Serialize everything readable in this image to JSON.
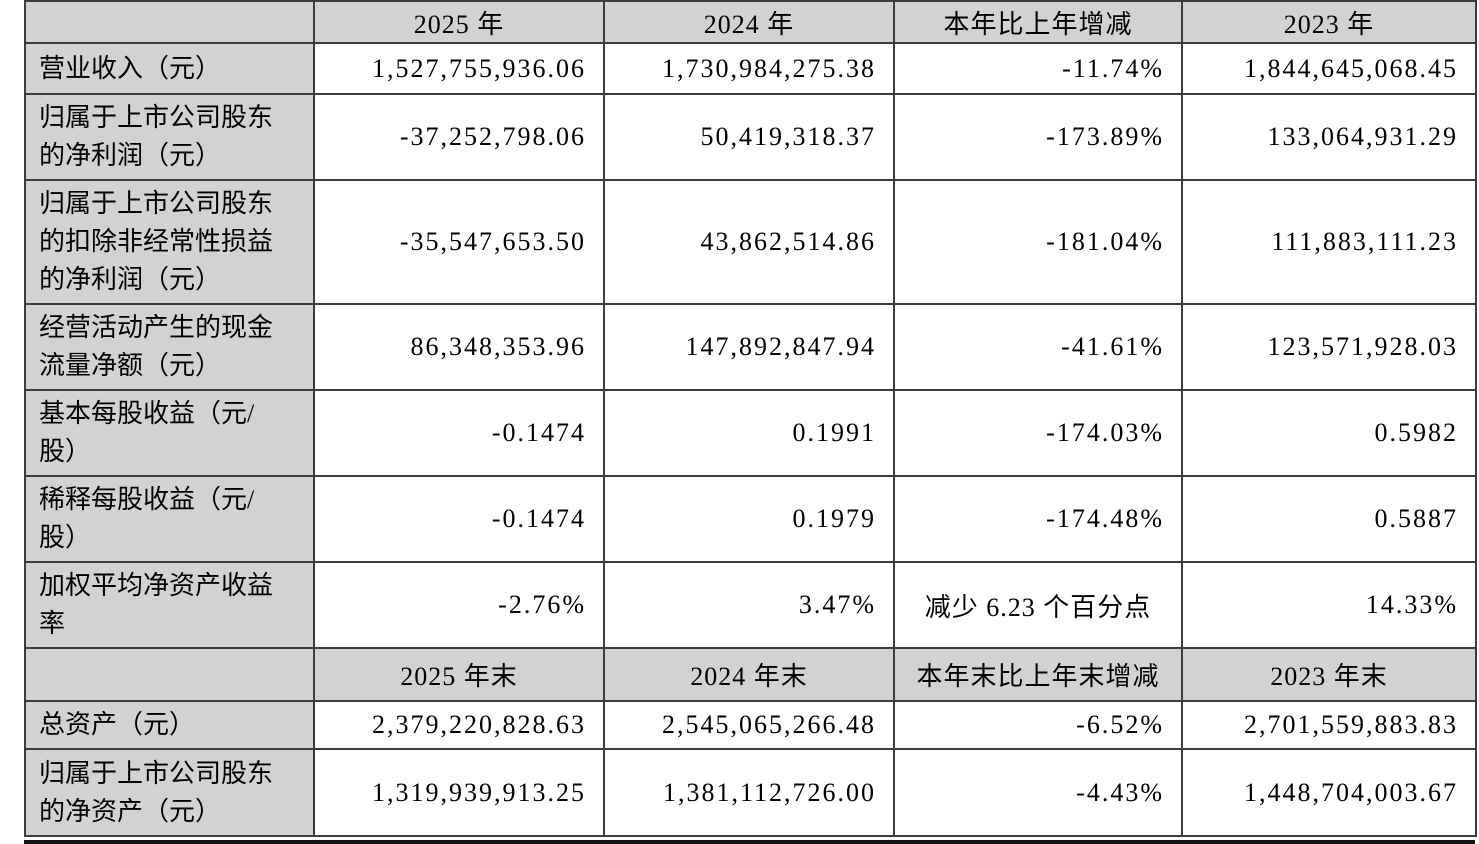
{
  "table": {
    "sections": [
      {
        "header": [
          "",
          "2025 年",
          "2024 年",
          "本年比上年增减",
          "2023 年"
        ],
        "rows": [
          {
            "label": "营业收入（元）",
            "values": [
              "1,527,755,936.06",
              "1,730,984,275.38",
              "-11.74%",
              "1,844,645,068.45"
            ]
          },
          {
            "label": "归属于上市公司股东的净利润（元）",
            "values": [
              "-37,252,798.06",
              "50,419,318.37",
              "-173.89%",
              "133,064,931.29"
            ]
          },
          {
            "label": "归属于上市公司股东的扣除非经常性损益的净利润（元）",
            "values": [
              "-35,547,653.50",
              "43,862,514.86",
              "-181.04%",
              "111,883,111.23"
            ]
          },
          {
            "label": "经营活动产生的现金流量净额（元）",
            "values": [
              "86,348,353.96",
              "147,892,847.94",
              "-41.61%",
              "123,571,928.03"
            ]
          },
          {
            "label": "基本每股收益（元/股）",
            "values": [
              "-0.1474",
              "0.1991",
              "-174.03%",
              "0.5982"
            ]
          },
          {
            "label": "稀释每股收益（元/股）",
            "values": [
              "-0.1474",
              "0.1979",
              "-174.48%",
              "0.5887"
            ]
          },
          {
            "label": "加权平均净资产收益率",
            "values": [
              "-2.76%",
              "3.47%",
              "减少 6.23 个百分点",
              "14.33%"
            ],
            "center": [
              2
            ]
          }
        ]
      },
      {
        "header": [
          "",
          "2025 年末",
          "2024 年末",
          "本年末比上年末增减",
          "2023 年末"
        ],
        "rows": [
          {
            "label": "总资产（元）",
            "values": [
              "2,379,220,828.63",
              "2,545,065,266.48",
              "-6.52%",
              "2,701,559,883.83"
            ]
          },
          {
            "label": "归属于上市公司股东的净资产（元）",
            "values": [
              "1,319,939,913.25",
              "1,381,112,726.00",
              "-4.43%",
              "1,448,704,003.67"
            ]
          }
        ]
      }
    ]
  },
  "colors": {
    "header_bg": "#d2d2d2",
    "label_bg": "#d2d2d2",
    "border": "#3c3c3c",
    "thick_rule": "#141414",
    "cell_bg": "#ffffff",
    "text": "#000000"
  }
}
